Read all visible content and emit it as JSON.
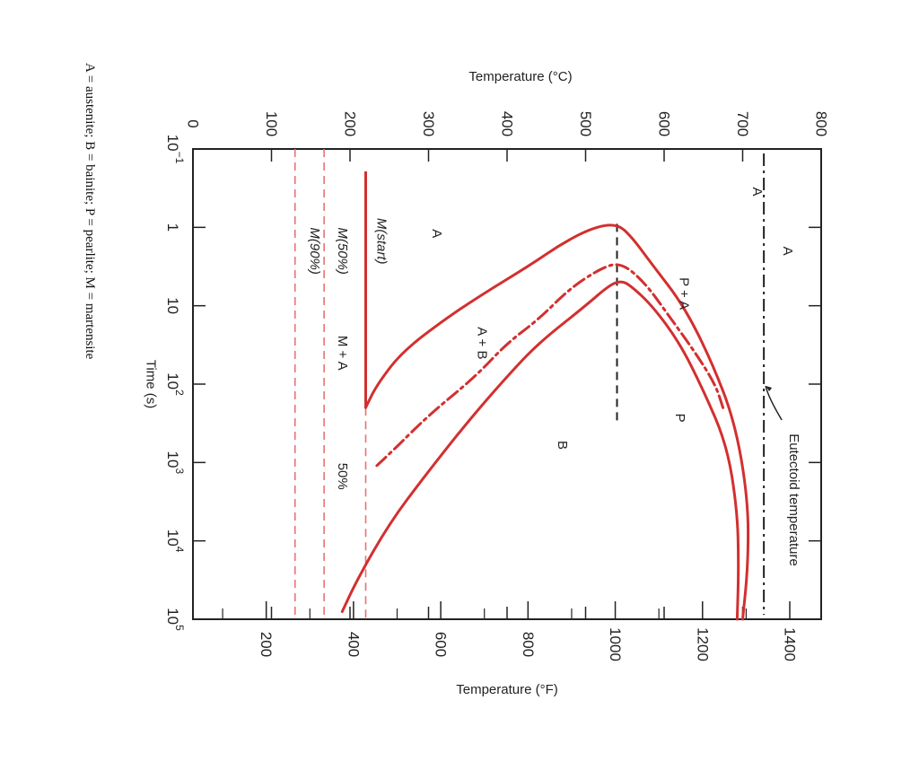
{
  "caption": "A = austenite; B = bainite; P = pearlite; M = martensite",
  "chart_data": {
    "type": "line",
    "orientation": "rotated 90° clockwise (time axis runs top to bottom on the page)",
    "x_axis": {
      "label": "Time (s)",
      "scale": "log",
      "lim": [
        0.1,
        100000
      ],
      "ticks": [
        "10-1",
        "1",
        "10",
        "102",
        "103",
        "104",
        "105"
      ]
    },
    "y_axis_top": {
      "label": "Temperature (°C)",
      "lim": [
        0,
        800
      ],
      "ticks": [
        "0",
        "100",
        "200",
        "300",
        "400",
        "500",
        "600",
        "700",
        "800"
      ]
    },
    "y_axis_bottom": {
      "label": "Temperature (°F)",
      "ticks": [
        "200",
        "400",
        "600",
        "800",
        "1000",
        "1200",
        "1400"
      ]
    },
    "reference_lines": [
      {
        "name": "Eutectoid temperature",
        "temp_c": 727,
        "style": "dash-dot",
        "color": "#222222"
      },
      {
        "name": "M(start)",
        "temp_c": 220,
        "style": "solid",
        "color": "#d32f2f"
      },
      {
        "name": "M(50%)",
        "temp_c": 167,
        "style": "dashed",
        "color": "#e57373"
      },
      {
        "name": "M(90%)",
        "temp_c": 130,
        "style": "dashed",
        "color": "#e57373"
      },
      {
        "name": "50% low",
        "temp_c": 220,
        "style": "dashed",
        "color": "#e57373",
        "t_from": 200,
        "t_to": 100000
      },
      {
        "name": "nose",
        "temp_c": 540,
        "style": "dashed",
        "color": "#222222",
        "t_from": 0.9,
        "t_to": 300
      }
    ],
    "series": [
      {
        "name": "start",
        "style": "solid",
        "color": "#d32f2f",
        "points": [
          [
            100000,
            700
          ],
          [
            20000,
            707
          ],
          [
            3000,
            707
          ],
          [
            300,
            690
          ],
          [
            50,
            660
          ],
          [
            10,
            625
          ],
          [
            3,
            585
          ],
          [
            1.3,
            558
          ],
          [
            0.9,
            540
          ],
          [
            1.0,
            510
          ],
          [
            1.6,
            470
          ],
          [
            3,
            430
          ],
          [
            7,
            370
          ],
          [
            15,
            320
          ],
          [
            40,
            265
          ],
          [
            100,
            235
          ],
          [
            180,
            222
          ],
          [
            200,
            220
          ]
        ]
      },
      {
        "name": "50%",
        "style": "dash-dot",
        "color": "#d32f2f",
        "points": [
          [
            200,
            675
          ],
          [
            100,
            665
          ],
          [
            40,
            640
          ],
          [
            13,
            605
          ],
          [
            5,
            575
          ],
          [
            2.8,
            545
          ],
          [
            3.3,
            520
          ],
          [
            6,
            480
          ],
          [
            15,
            440
          ],
          [
            30,
            400
          ],
          [
            80,
            360
          ],
          [
            250,
            300
          ],
          [
            700,
            255
          ],
          [
            1200,
            230
          ]
        ]
      },
      {
        "name": "end",
        "style": "solid",
        "color": "#d32f2f",
        "points": [
          [
            100000,
            693
          ],
          [
            20000,
            695
          ],
          [
            4000,
            693
          ],
          [
            600,
            680
          ],
          [
            120,
            650
          ],
          [
            30,
            620
          ],
          [
            10,
            585
          ],
          [
            5.5,
            557
          ],
          [
            4.8,
            545
          ],
          [
            5.5,
            530
          ],
          [
            10,
            500
          ],
          [
            30,
            440
          ],
          [
            80,
            400
          ],
          [
            300,
            350
          ],
          [
            1500,
            295
          ],
          [
            6000,
            250
          ],
          [
            30000,
            210
          ],
          [
            80000,
            190
          ]
        ]
      }
    ],
    "labels": [
      {
        "text": "A",
        "temp_c": 718,
        "t": 0.35
      },
      {
        "text": "A",
        "temp_c": 757,
        "t": 2.0
      },
      {
        "text": "A",
        "temp_c": 310,
        "t": 1.2
      },
      {
        "text": "P + A",
        "temp_c": 625,
        "t": 7
      },
      {
        "text": "P",
        "temp_c": 620,
        "t": 270
      },
      {
        "text": "B",
        "temp_c": 470,
        "t": 600
      },
      {
        "text": "A + B",
        "temp_c": 368,
        "t": 30
      },
      {
        "text": "M + A",
        "temp_c": 190,
        "t": 40
      },
      {
        "text": "M(start)",
        "temp_c": 240,
        "t": 1.5
      },
      {
        "text": "M(50%)",
        "temp_c": 190,
        "t": 2.0
      },
      {
        "text": "M(90%)",
        "temp_c": 155,
        "t": 2.0
      },
      {
        "text": "50%",
        "temp_c": 190,
        "t": 1500
      },
      {
        "text": "Eutectoid temperature",
        "temp_c": 765,
        "t": 3000
      }
    ],
    "grid": false
  }
}
